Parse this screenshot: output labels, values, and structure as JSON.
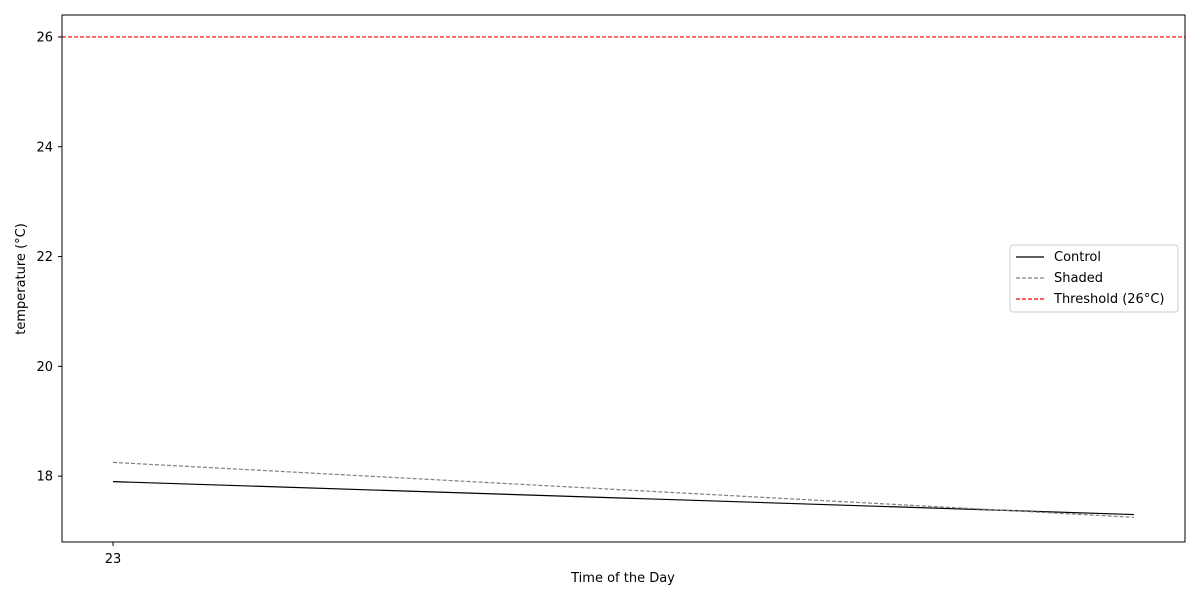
{
  "chart_data": {
    "type": "line",
    "xlabel": "Time of the Day",
    "ylabel": "temperature (°C)",
    "xlim": [
      22.95,
      24.05
    ],
    "ylim": [
      16.8,
      26.4
    ],
    "x_ticks": [
      23
    ],
    "x_tick_labels": [
      "23"
    ],
    "y_ticks": [
      18,
      20,
      22,
      24,
      26
    ],
    "y_tick_labels": [
      "18",
      "20",
      "22",
      "24",
      "26"
    ],
    "grid": false,
    "legend_position": "center-right",
    "series": [
      {
        "name": "Control",
        "color": "#000000",
        "style": "solid",
        "x": [
          23.0,
          24.0
        ],
        "values": [
          17.9,
          17.3
        ]
      },
      {
        "name": "Shaded",
        "color": "#808080",
        "style": "dashed",
        "x": [
          23.0,
          24.0
        ],
        "values": [
          18.25,
          17.25
        ]
      }
    ],
    "threshold": {
      "name": "Threshold (26°C)",
      "value": 26,
      "color": "#ff0000",
      "style": "dashed"
    }
  }
}
